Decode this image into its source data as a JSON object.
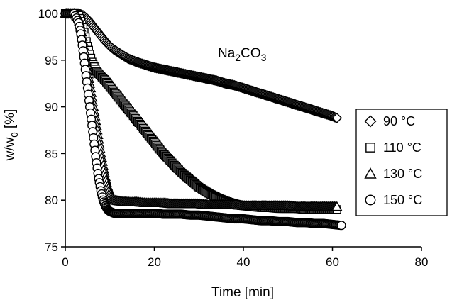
{
  "chart_data": {
    "type": "scatter",
    "title": "",
    "annotation": {
      "base": "Na",
      "sub1": "2",
      "mid": "CO",
      "sub2": "3"
    },
    "xlabel": "Time [min]",
    "ylabel": {
      "base": "w/w",
      "sub": "0",
      "unit": " [%]"
    },
    "xlim": [
      0,
      80
    ],
    "ylim": [
      75,
      100
    ],
    "xticks": [
      0,
      20,
      40,
      60,
      80
    ],
    "yticks": [
      75,
      80,
      85,
      90,
      95,
      100
    ],
    "grid": false,
    "legend_position": "right",
    "series": [
      {
        "name": "90 °C",
        "marker": "diamond",
        "x": [
          0,
          1,
          2,
          3,
          4,
          5,
          6,
          7,
          8,
          9,
          10,
          11,
          12,
          13,
          14,
          15,
          16,
          18,
          20,
          22,
          24,
          26,
          28,
          30,
          32,
          34,
          36,
          38,
          40,
          42,
          44,
          46,
          48,
          50,
          52,
          54,
          56,
          58,
          60,
          61
        ],
        "y": [
          100,
          100,
          100,
          100,
          99.8,
          99.4,
          98.8,
          98.2,
          97.6,
          97.0,
          96.5,
          96.1,
          95.8,
          95.5,
          95.2,
          95.0,
          94.8,
          94.5,
          94.2,
          94.0,
          93.8,
          93.6,
          93.4,
          93.2,
          93.0,
          92.8,
          92.5,
          92.3,
          92.0,
          91.7,
          91.4,
          91.1,
          90.8,
          90.5,
          90.2,
          89.9,
          89.6,
          89.3,
          89.0,
          88.8
        ]
      },
      {
        "name": "110 °C",
        "marker": "square",
        "x": [
          0,
          1,
          2,
          3,
          4,
          5,
          6,
          7,
          8,
          9,
          10,
          11,
          12,
          13,
          14,
          15,
          16,
          18,
          20,
          22,
          24,
          26,
          28,
          30,
          32,
          34,
          36,
          38,
          40,
          42,
          44,
          46,
          48,
          50,
          52,
          54,
          56,
          58,
          60,
          61
        ],
        "y": [
          100,
          100,
          100,
          99.8,
          98.5,
          96.5,
          94.8,
          93.8,
          93.3,
          92.8,
          92.2,
          91.6,
          91.0,
          90.4,
          89.8,
          89.2,
          88.6,
          87.4,
          86.2,
          85.0,
          84.0,
          83.0,
          82.2,
          81.4,
          80.8,
          80.3,
          79.9,
          79.6,
          79.4,
          79.3,
          79.2,
          79.2,
          79.1,
          79.1,
          79.1,
          79.0,
          79.0,
          79.0,
          79.0,
          79.0
        ]
      },
      {
        "name": "130 °C",
        "marker": "triangle",
        "x": [
          0,
          1,
          2,
          3,
          3.5,
          4,
          4.5,
          5,
          5.5,
          6,
          6.5,
          7,
          7.5,
          8,
          8.5,
          9,
          9.5,
          10,
          10.5,
          11,
          12,
          14,
          16,
          18,
          20,
          22,
          24,
          26,
          28,
          30,
          32,
          34,
          36,
          38,
          40,
          42,
          44,
          46,
          48,
          50,
          52,
          54,
          56,
          58,
          60,
          61
        ],
        "y": [
          100,
          100,
          100,
          99.5,
          98.5,
          97.0,
          95.5,
          94.0,
          92.5,
          91.0,
          89.5,
          88.0,
          86.5,
          85.0,
          83.7,
          82.5,
          81.5,
          80.8,
          80.3,
          80.0,
          79.9,
          79.8,
          79.8,
          79.7,
          79.7,
          79.7,
          79.6,
          79.6,
          79.6,
          79.6,
          79.5,
          79.5,
          79.5,
          79.5,
          79.4,
          79.4,
          79.4,
          79.4,
          79.4,
          79.4,
          79.3,
          79.3,
          79.3,
          79.3,
          79.3,
          79.3
        ]
      },
      {
        "name": "150 °C",
        "marker": "circle",
        "x": [
          0,
          1,
          2,
          3,
          3.5,
          4,
          4.5,
          5,
          5.5,
          6,
          6.5,
          7,
          7.5,
          8,
          8.5,
          9,
          9.5,
          10,
          10.5,
          11,
          12,
          14,
          16,
          18,
          20,
          22,
          24,
          26,
          28,
          30,
          32,
          34,
          36,
          38,
          40,
          42,
          44,
          46,
          48,
          50,
          52,
          54,
          56,
          58,
          60,
          62
        ],
        "y": [
          100,
          100,
          100,
          99.0,
          97.8,
          96.0,
          94.0,
          92.0,
          90.0,
          88.0,
          86.0,
          84.0,
          82.3,
          81.0,
          80.0,
          79.4,
          79.0,
          78.8,
          78.7,
          78.6,
          78.6,
          78.6,
          78.6,
          78.6,
          78.6,
          78.5,
          78.5,
          78.5,
          78.4,
          78.4,
          78.3,
          78.2,
          78.1,
          78.0,
          78.0,
          77.9,
          77.8,
          77.8,
          77.7,
          77.7,
          77.6,
          77.6,
          77.5,
          77.5,
          77.4,
          77.3
        ]
      }
    ]
  }
}
